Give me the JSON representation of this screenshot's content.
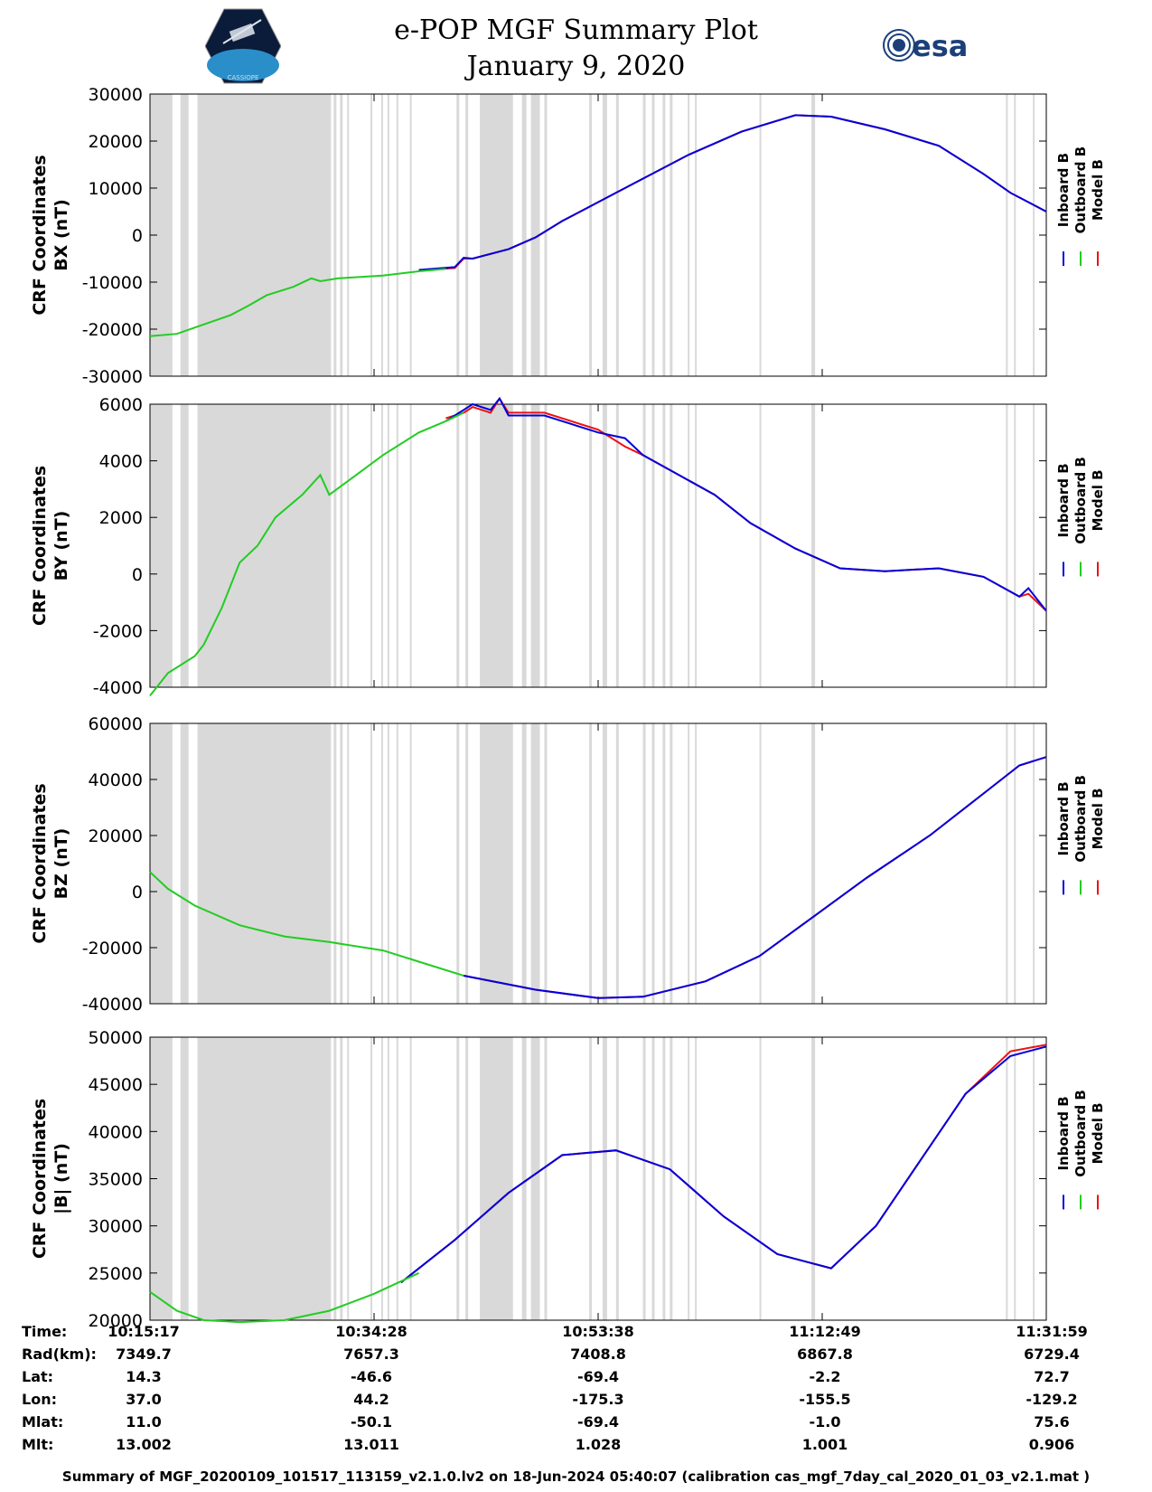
{
  "title": "e-POP MGF Summary Plot",
  "date": "January 9, 2020",
  "logos": {
    "left": "CASSIOPE",
    "right": "esa"
  },
  "colors": {
    "inboard": "#0000dd",
    "outboard": "#22cc22",
    "model": "#ee1111",
    "gap": "#d9d9d9"
  },
  "legend": [
    "Inboard B",
    "Outboard B",
    "Model B"
  ],
  "time_span": [
    "10:15:17",
    "11:31:59"
  ],
  "chart_data": [
    {
      "type": "line",
      "ylabel": [
        "CRF Coordinates",
        "BX (nT)"
      ],
      "ylim": [
        -30000,
        30000
      ],
      "yticks": [
        30000,
        20000,
        10000,
        0,
        -10000,
        -20000,
        -30000
      ],
      "outboard": [
        [
          0,
          -21500
        ],
        [
          3,
          -21000
        ],
        [
          6,
          -19000
        ],
        [
          9,
          -17000
        ],
        [
          11,
          -15000
        ],
        [
          13,
          -12800
        ],
        [
          16,
          -11000
        ],
        [
          18,
          -9200
        ],
        [
          19,
          -9800
        ],
        [
          21,
          -9200
        ],
        [
          26,
          -8600
        ],
        [
          30,
          -7700
        ],
        [
          33,
          -7200
        ]
      ],
      "inboard": [
        [
          30,
          -7400
        ],
        [
          34,
          -6800
        ],
        [
          35,
          -4800
        ],
        [
          36,
          -5000
        ],
        [
          40,
          -3000
        ],
        [
          43,
          -500
        ],
        [
          46,
          3000
        ],
        [
          48,
          5000
        ],
        [
          51,
          8000
        ],
        [
          54,
          11000
        ],
        [
          60,
          17000
        ],
        [
          66,
          22000
        ],
        [
          72,
          25500
        ],
        [
          76,
          25200
        ],
        [
          82,
          22500
        ],
        [
          88,
          19000
        ],
        [
          93,
          13000
        ],
        [
          96,
          9000
        ],
        [
          100,
          5000
        ]
      ],
      "model": [
        [
          30,
          -7500
        ],
        [
          34,
          -7000
        ],
        [
          35,
          -5000
        ],
        [
          36,
          -5000
        ],
        [
          40,
          -3000
        ],
        [
          43,
          -500
        ],
        [
          46,
          3000
        ],
        [
          48,
          5000
        ],
        [
          51,
          8000
        ],
        [
          54,
          11000
        ],
        [
          60,
          17000
        ],
        [
          66,
          22000
        ],
        [
          72,
          25500
        ],
        [
          76,
          25200
        ],
        [
          82,
          22500
        ],
        [
          88,
          19000
        ],
        [
          93,
          13000
        ],
        [
          96,
          9000
        ],
        [
          100,
          5000
        ]
      ]
    },
    {
      "type": "line",
      "ylabel": [
        "CRF Coordinates",
        "BY (nT)"
      ],
      "ylim": [
        -4000,
        6000
      ],
      "yticks": [
        6000,
        4000,
        2000,
        0,
        -2000,
        -4000
      ],
      "outboard": [
        [
          0,
          -4300
        ],
        [
          2,
          -3500
        ],
        [
          5,
          -2900
        ],
        [
          6,
          -2500
        ],
        [
          8,
          -1200
        ],
        [
          10,
          400
        ],
        [
          12,
          1000
        ],
        [
          14,
          2000
        ],
        [
          17,
          2800
        ],
        [
          19,
          3500
        ],
        [
          20,
          2800
        ],
        [
          23,
          3500
        ],
        [
          26,
          4200
        ],
        [
          30,
          5000
        ],
        [
          33,
          5400
        ],
        [
          35,
          5700
        ]
      ],
      "inboard": [
        [
          33,
          5400
        ],
        [
          35,
          5800
        ],
        [
          36,
          6000
        ],
        [
          38,
          5800
        ],
        [
          39,
          6200
        ],
        [
          40,
          5600
        ],
        [
          44,
          5600
        ],
        [
          50,
          5000
        ],
        [
          53,
          4800
        ],
        [
          55,
          4200
        ],
        [
          59,
          3500
        ],
        [
          63,
          2800
        ],
        [
          67,
          1800
        ],
        [
          72,
          900
        ],
        [
          77,
          200
        ],
        [
          82,
          100
        ],
        [
          88,
          200
        ],
        [
          93,
          -100
        ],
        [
          97,
          -800
        ],
        [
          98,
          -500
        ],
        [
          100,
          -1300
        ]
      ],
      "model": [
        [
          33,
          5500
        ],
        [
          35,
          5700
        ],
        [
          36,
          5900
        ],
        [
          38,
          5700
        ],
        [
          39,
          6200
        ],
        [
          40,
          5700
        ],
        [
          44,
          5700
        ],
        [
          50,
          5100
        ],
        [
          53,
          4500
        ],
        [
          55,
          4200
        ],
        [
          59,
          3500
        ],
        [
          63,
          2800
        ],
        [
          67,
          1800
        ],
        [
          72,
          900
        ],
        [
          77,
          200
        ],
        [
          82,
          100
        ],
        [
          88,
          200
        ],
        [
          93,
          -100
        ],
        [
          97,
          -800
        ],
        [
          98,
          -700
        ],
        [
          100,
          -1300
        ]
      ]
    },
    {
      "type": "line",
      "ylabel": [
        "CRF Coordinates",
        "BZ (nT)"
      ],
      "ylim": [
        -40000,
        60000
      ],
      "yticks": [
        60000,
        40000,
        20000,
        0,
        -20000,
        -40000
      ],
      "outboard": [
        [
          0,
          7000
        ],
        [
          2,
          1000
        ],
        [
          5,
          -5000
        ],
        [
          10,
          -12000
        ],
        [
          15,
          -16000
        ],
        [
          20,
          -18000
        ],
        [
          26,
          -21000
        ],
        [
          30,
          -25000
        ],
        [
          35,
          -30000
        ]
      ],
      "inboard": [
        [
          35,
          -30000
        ],
        [
          43,
          -35000
        ],
        [
          50,
          -38000
        ],
        [
          55,
          -37500
        ],
        [
          62,
          -32000
        ],
        [
          68,
          -23000
        ],
        [
          74,
          -9000
        ],
        [
          80,
          5000
        ],
        [
          87,
          20000
        ],
        [
          93,
          35000
        ],
        [
          97,
          45000
        ],
        [
          100,
          48000
        ]
      ],
      "model": [
        [
          35,
          -30000
        ],
        [
          43,
          -35000
        ],
        [
          50,
          -38000
        ],
        [
          55,
          -37500
        ],
        [
          62,
          -32000
        ],
        [
          68,
          -23000
        ],
        [
          74,
          -9000
        ],
        [
          80,
          5000
        ],
        [
          87,
          20000
        ],
        [
          93,
          35000
        ],
        [
          97,
          45000
        ],
        [
          100,
          48000
        ]
      ]
    },
    {
      "type": "line",
      "ylabel": [
        "CRF Coordinates",
        "|B| (nT)"
      ],
      "ylim": [
        20000,
        50000
      ],
      "yticks": [
        50000,
        45000,
        40000,
        35000,
        30000,
        25000,
        20000
      ],
      "outboard": [
        [
          0,
          23000
        ],
        [
          3,
          21000
        ],
        [
          6,
          20000
        ],
        [
          10,
          19800
        ],
        [
          15,
          20000
        ],
        [
          20,
          21000
        ],
        [
          25,
          22800
        ],
        [
          30,
          25000
        ]
      ],
      "inboard": [
        [
          28,
          24000
        ],
        [
          34,
          28500
        ],
        [
          40,
          33500
        ],
        [
          46,
          37500
        ],
        [
          52,
          38000
        ],
        [
          58,
          36000
        ],
        [
          64,
          31000
        ],
        [
          70,
          27000
        ],
        [
          76,
          25500
        ],
        [
          81,
          30000
        ],
        [
          86,
          37000
        ],
        [
          91,
          44000
        ],
        [
          96,
          48000
        ],
        [
          100,
          49000
        ]
      ],
      "model": [
        [
          28,
          24000
        ],
        [
          34,
          28500
        ],
        [
          40,
          33500
        ],
        [
          46,
          37500
        ],
        [
          52,
          38000
        ],
        [
          58,
          36000
        ],
        [
          64,
          31000
        ],
        [
          70,
          27000
        ],
        [
          76,
          25500
        ],
        [
          81,
          30000
        ],
        [
          86,
          37000
        ],
        [
          91,
          44000
        ],
        [
          96,
          48500
        ],
        [
          100,
          49200
        ]
      ]
    }
  ],
  "info": {
    "labels": [
      "Time:",
      "Rad(km):",
      "Lat:",
      "Lon:",
      "Mlat:",
      "Mlt:"
    ],
    "columns": [
      [
        "10:15:17",
        "7349.7",
        "14.3",
        "37.0",
        "11.0",
        "13.002"
      ],
      [
        "10:34:28",
        "7657.3",
        "-46.6",
        "44.2",
        "-50.1",
        "13.011"
      ],
      [
        "10:53:38",
        "7408.8",
        "-69.4",
        "-175.3",
        "-69.4",
        "1.028"
      ],
      [
        "11:12:49",
        "6867.8",
        "-2.2",
        "-155.5",
        "-1.0",
        "1.001"
      ],
      [
        "11:31:59",
        "6729.4",
        "72.7",
        "-129.2",
        "75.6",
        "0.906"
      ]
    ]
  },
  "footer": "Summary of MGF_20200109_101517_113159_v2.1.0.lv2 on 18-Jun-2024 05:40:07 (calibration cas_mgf_7day_cal_2020_01_03_v2.1.mat )"
}
